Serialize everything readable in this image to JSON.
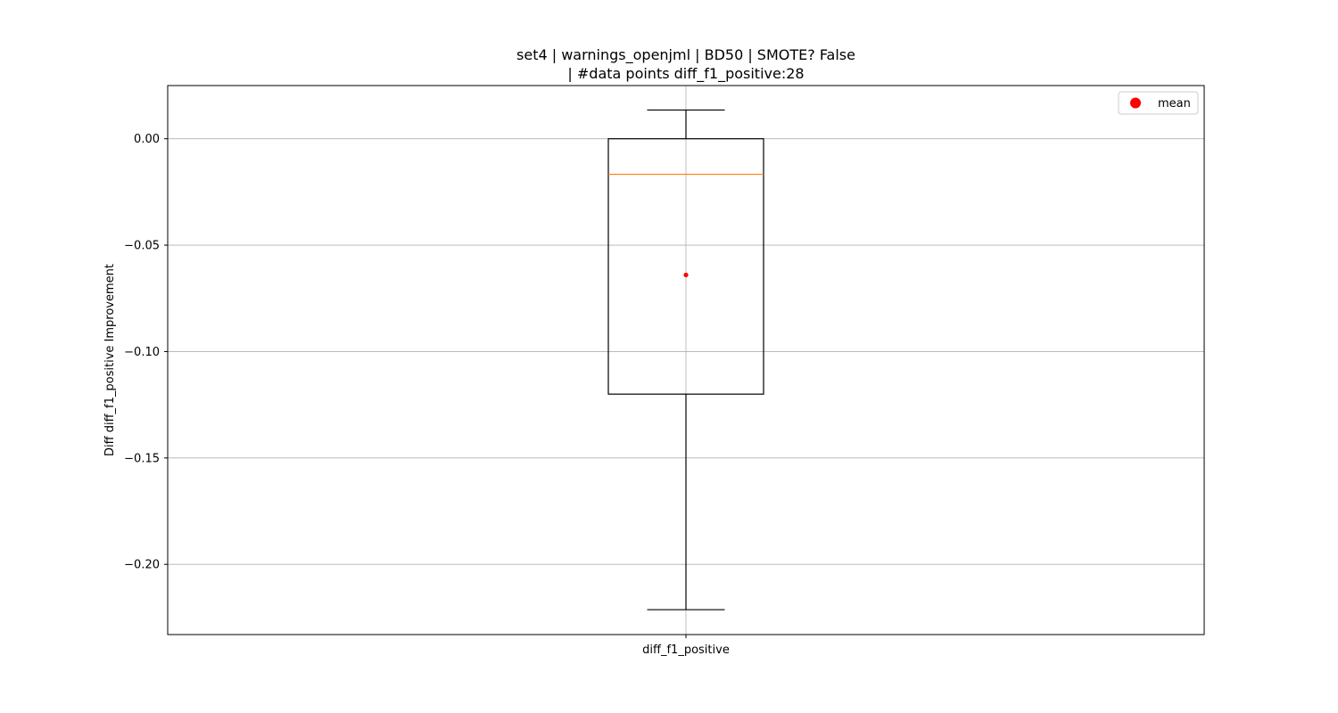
{
  "chart_data": {
    "type": "box",
    "title_lines": [
      "set4 | warnings_openjml | BD50 | SMOTE? False",
      "| #data points diff_f1_positive:28"
    ],
    "xlabel": "",
    "ylabel": "Diff diff_f1_positive Improvement",
    "categories": [
      "diff_f1_positive"
    ],
    "ylim": [
      -0.233,
      0.025
    ],
    "yticks": [
      0.0,
      -0.05,
      -0.1,
      -0.15,
      -0.2
    ],
    "ytick_labels": [
      "0.00",
      "−0.05",
      "−0.10",
      "−0.15",
      "−0.20"
    ],
    "grid": true,
    "legend": {
      "position": "top-right",
      "entries": [
        {
          "label": "mean",
          "marker": "circle",
          "color": "#ff0000"
        }
      ]
    },
    "boxes": [
      {
        "category": "diff_f1_positive",
        "whisker_high": 0.0135,
        "q3": 0.0,
        "median": -0.0167,
        "q1": -0.12,
        "whisker_low": -0.2213,
        "mean": -0.064,
        "n": 28
      }
    ],
    "colors": {
      "box": "#000000",
      "median": "#ff7f0e",
      "mean": "#ff0000",
      "grid": "#b0b0b0"
    }
  }
}
